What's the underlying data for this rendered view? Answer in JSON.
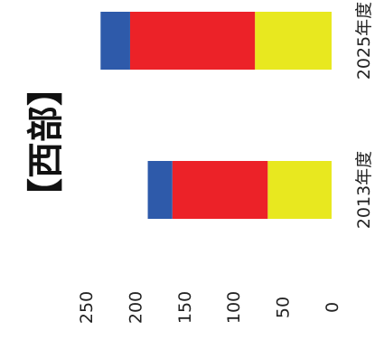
{
  "chart_data": {
    "type": "bar",
    "orientation": "stacked-rotated",
    "title": "【西部】",
    "categories": [
      "2013年度",
      "2025年度"
    ],
    "series": [
      {
        "name": "",
        "color": "#e8e81f",
        "values": [
          65,
          78
        ]
      },
      {
        "name": "",
        "color": "#ec2228",
        "values": [
          97,
          127
        ]
      },
      {
        "name": "",
        "color": "#2e5aaa",
        "values": [
          25,
          30
        ]
      }
    ],
    "ylim": [
      0,
      250
    ],
    "yticks": [
      "0",
      "50",
      "100",
      "150",
      "200",
      "250"
    ],
    "xlabel": "",
    "ylabel": "",
    "grid": false,
    "legend": "none"
  }
}
